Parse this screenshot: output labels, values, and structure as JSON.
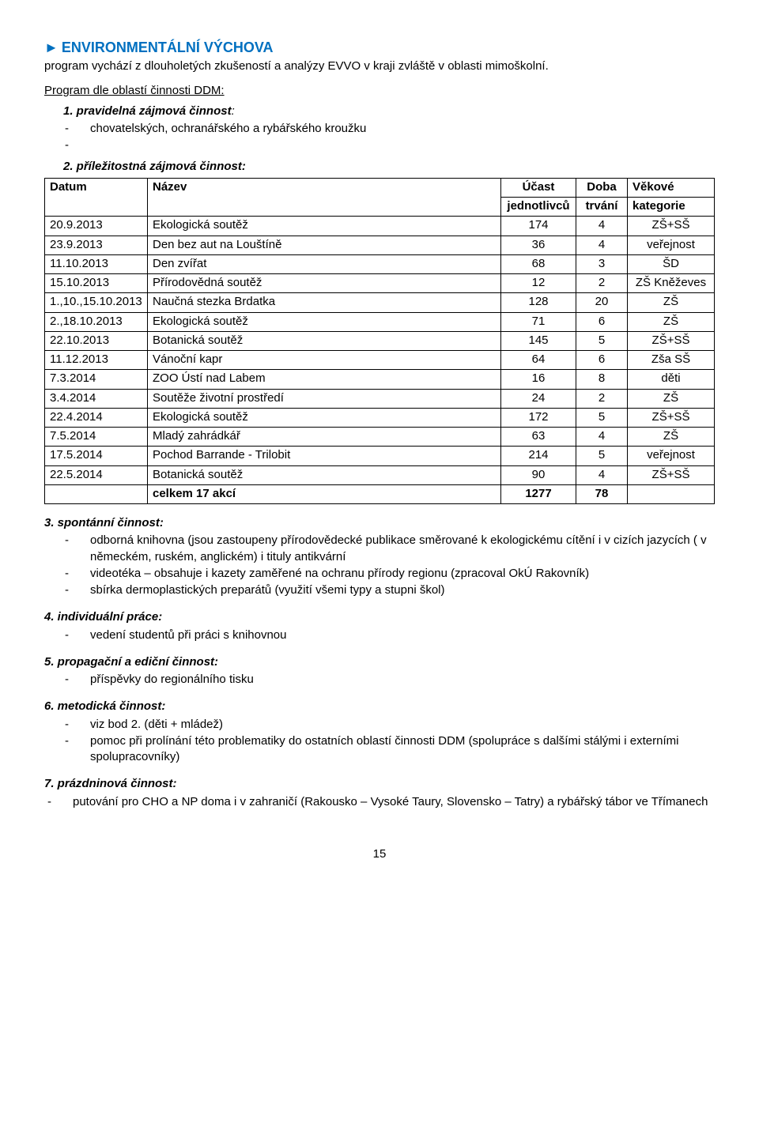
{
  "header": {
    "arrow": "►",
    "title": "ENVIRONMENTÁLNÍ VÝCHOVA",
    "intro": "program vychází z dlouholetých zkušeností a analýzy EVVO v kraji zvláště v oblasti mimoškolní.",
    "subhead": "Program dle oblastí činnosti DDM:"
  },
  "item1": {
    "label": "1. pravidelná zájmová činnost",
    "colon": ":",
    "bullets": [
      "chovatelských, ochranářského  a  rybářského kroužku"
    ],
    "trailing_dash": "-"
  },
  "item2": {
    "label": "2. příležitostná zájmová činnost:"
  },
  "table": {
    "headers": {
      "datum": "Datum",
      "nazev": "Název",
      "ucast": "Účast jednotlivců",
      "doba": "Doba trvání",
      "vekove": "Věkové kategorie"
    },
    "rows": [
      {
        "d": "20.9.2013",
        "n": "Ekologická soutěž",
        "u": "174",
        "t": "4",
        "k": "ZŠ+SŠ"
      },
      {
        "d": "23.9.2013",
        "n": "Den bez aut na Louštíně",
        "u": "36",
        "t": "4",
        "k": "veřejnost"
      },
      {
        "d": "11.10.2013",
        "n": "Den zvířat",
        "u": "68",
        "t": "3",
        "k": "ŠD"
      },
      {
        "d": "15.10.2013",
        "n": "Přírodovědná soutěž",
        "u": "12",
        "t": "2",
        "k": "ZŠ Kněževes"
      },
      {
        "d": "1.,10.,15.10.2013",
        "n": "Naučná stezka Brdatka",
        "u": "128",
        "t": "20",
        "k": "ZŠ"
      },
      {
        "d": "2.,18.10.2013",
        "n": "Ekologická soutěž",
        "u": "71",
        "t": "6",
        "k": "ZŠ"
      },
      {
        "d": "22.10.2013",
        "n": "Botanická soutěž",
        "u": "145",
        "t": "5",
        "k": "ZŠ+SŠ"
      },
      {
        "d": "11.12.2013",
        "n": "Vánoční kapr",
        "u": "64",
        "t": "6",
        "k": "Zša SŠ"
      },
      {
        "d": "7.3.2014",
        "n": "ZOO Ústí nad Labem",
        "u": "16",
        "t": "8",
        "k": "děti"
      },
      {
        "d": "3.4.2014",
        "n": "Soutěže životní prostředí",
        "u": "24",
        "t": "2",
        "k": "ZŠ"
      },
      {
        "d": "22.4.2014",
        "n": "Ekologická soutěž",
        "u": "172",
        "t": "5",
        "k": "ZŠ+SŠ"
      },
      {
        "d": "7.5.2014",
        "n": "Mladý zahrádkář",
        "u": "63",
        "t": "4",
        "k": "ZŠ"
      },
      {
        "d": "17.5.2014",
        "n": "Pochod Barrande - Trilobit",
        "u": "214",
        "t": "5",
        "k": "veřejnost"
      },
      {
        "d": "22.5.2014",
        "n": "Botanická soutěž",
        "u": "90",
        "t": "4",
        "k": "ZŠ+SŠ"
      }
    ],
    "sum": {
      "label": "celkem  17 akcí",
      "u": "1277",
      "t": "78"
    }
  },
  "item3": {
    "label": "3. spontánní činnost:",
    "bullets": [
      "odborná knihovna (jsou zastoupeny přírodovědecké publikace směrované k ekologickému cítění i v cizích jazycích ( v německém, ruském, anglickém) i tituly antikvární",
      "videotéka – obsahuje i kazety zaměřené na ochranu přírody regionu (zpracoval OkÚ Rakovník)",
      "sbírka dermoplastických preparátů  (využití všemi typy a stupni škol)"
    ]
  },
  "item4": {
    "label": "4. individuální práce:",
    "bullets": [
      "vedení studentů při práci s knihovnou"
    ]
  },
  "item5": {
    "label": "5. propagační a ediční činnost:",
    "bullets": [
      "příspěvky do regionálního tisku"
    ]
  },
  "item6": {
    "label": "6. metodická činnost:",
    "bullets": [
      "viz bod 2. (děti + mládež)",
      "pomoc při prolínání této problematiky do ostatních oblastí činnosti DDM (spolupráce s dalšími  stálými i externími spolupracovníky)"
    ]
  },
  "item7": {
    "label": "7. prázdninová činnost:",
    "bullets": [
      "putování pro CHO  a NP doma i v zahraničí (Rakousko – Vysoké Taury, Slovensko – Tatry) a rybářský tábor ve Třímanech"
    ]
  },
  "page": "15"
}
